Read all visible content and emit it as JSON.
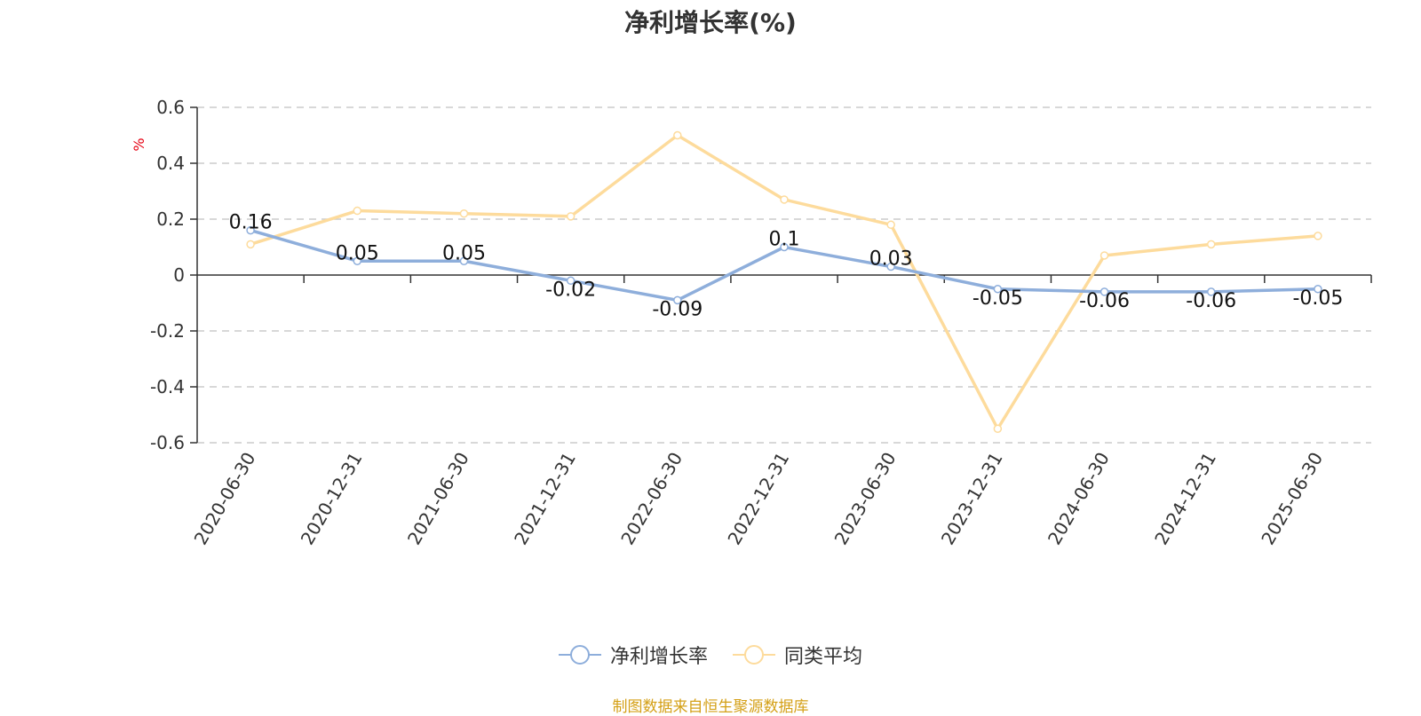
{
  "chart_data": {
    "type": "line",
    "title": "净利增长率(%)",
    "ylabel": "%",
    "xlabel": "",
    "categories": [
      "2020-06-30",
      "2020-12-31",
      "2021-06-30",
      "2021-12-31",
      "2022-06-30",
      "2022-12-31",
      "2023-06-30",
      "2023-12-31",
      "2024-06-30",
      "2024-12-31",
      "2025-06-30"
    ],
    "ylim": [
      -0.6,
      0.6
    ],
    "yticks": [
      "0.6",
      "0.4",
      "0.2",
      "0",
      "-0.2",
      "-0.4",
      "-0.6"
    ],
    "grid": true,
    "legend_position": "bottom",
    "series": [
      {
        "name": "净利增长率",
        "color": "#8eaedb",
        "values": [
          0.16,
          0.05,
          0.05,
          -0.02,
          -0.09,
          0.1,
          0.03,
          -0.05,
          -0.06,
          -0.06,
          -0.05
        ],
        "labels": [
          "0.16",
          "0.05",
          "0.05",
          "-0.02",
          "-0.09",
          "0.1",
          "0.03",
          "-0.05",
          "-0.06",
          "-0.06",
          "-0.05"
        ]
      },
      {
        "name": "同类平均",
        "color": "#fddb9c",
        "values": [
          0.11,
          0.23,
          0.22,
          0.21,
          0.5,
          0.27,
          0.18,
          -0.55,
          0.07,
          0.11,
          0.14
        ]
      }
    ],
    "source_note": "制图数据来自恒生聚源数据库",
    "source_color": "#d4a017",
    "ylabel_color": "#e60012"
  }
}
